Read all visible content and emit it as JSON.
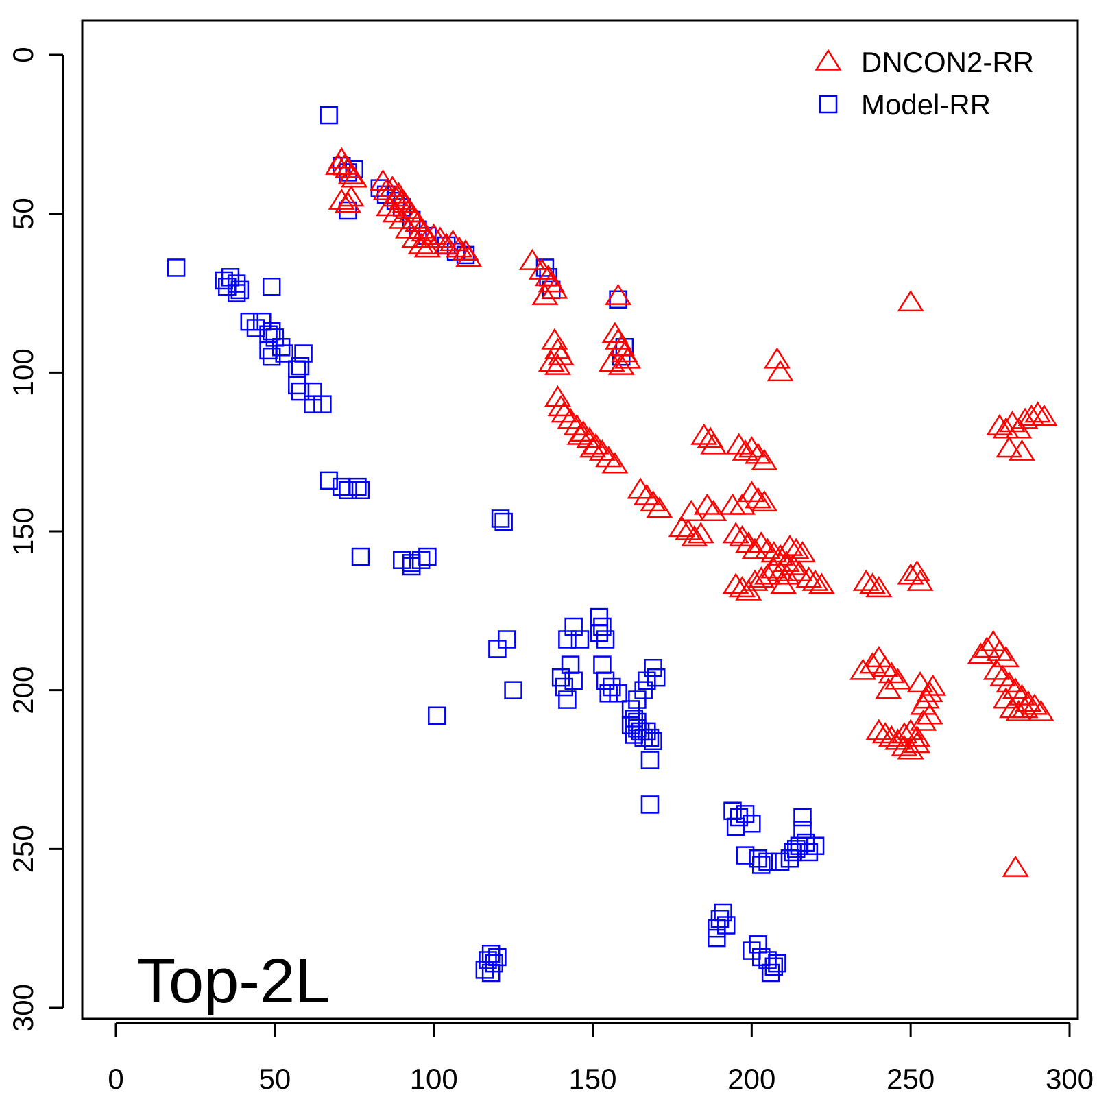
{
  "chart_data": {
    "type": "scatter",
    "title": "",
    "xlabel": "",
    "ylabel": "",
    "xlim": [
      0,
      300
    ],
    "ylim": [
      300,
      0
    ],
    "y_reversed": true,
    "grid": false,
    "legend_position": "top-right",
    "annotation": "Top-2L",
    "x_ticks": [
      0,
      50,
      100,
      150,
      200,
      250,
      300
    ],
    "y_ticks": [
      0,
      50,
      100,
      150,
      200,
      250,
      300
    ],
    "series": [
      {
        "name": "DNCON2-RR",
        "marker": "triangle",
        "color": "#ff0000",
        "points": [
          [
            71,
            33
          ],
          [
            72,
            35
          ],
          [
            73,
            36
          ],
          [
            74,
            38
          ],
          [
            70,
            35
          ],
          [
            75,
            39
          ],
          [
            73,
            47
          ],
          [
            74,
            45
          ],
          [
            71,
            46
          ],
          [
            84,
            40
          ],
          [
            85,
            43
          ],
          [
            87,
            42
          ],
          [
            88,
            45
          ],
          [
            89,
            44
          ],
          [
            90,
            46
          ],
          [
            91,
            47
          ],
          [
            92,
            49
          ],
          [
            93,
            50
          ],
          [
            94,
            52
          ],
          [
            95,
            53
          ],
          [
            96,
            55
          ],
          [
            97,
            56
          ],
          [
            98,
            58
          ],
          [
            100,
            57
          ],
          [
            102,
            58
          ],
          [
            104,
            60
          ],
          [
            106,
            59
          ],
          [
            108,
            61
          ],
          [
            110,
            62
          ],
          [
            111,
            64
          ],
          [
            86,
            48
          ],
          [
            88,
            50
          ],
          [
            90,
            52
          ],
          [
            92,
            55
          ],
          [
            94,
            58
          ],
          [
            96,
            60
          ],
          [
            98,
            61
          ],
          [
            131,
            65
          ],
          [
            134,
            68
          ],
          [
            136,
            70
          ],
          [
            137,
            72
          ],
          [
            138,
            74
          ],
          [
            135,
            76
          ],
          [
            158,
            76
          ],
          [
            138,
            90
          ],
          [
            139,
            93
          ],
          [
            140,
            95
          ],
          [
            137,
            97
          ],
          [
            139,
            98
          ],
          [
            157,
            88
          ],
          [
            158,
            90
          ],
          [
            159,
            92
          ],
          [
            160,
            94
          ],
          [
            161,
            96
          ],
          [
            156,
            97
          ],
          [
            159,
            98
          ],
          [
            208,
            96
          ],
          [
            209,
            100
          ],
          [
            250,
            78
          ],
          [
            139,
            108
          ],
          [
            140,
            111
          ],
          [
            141,
            113
          ],
          [
            143,
            115
          ],
          [
            145,
            117
          ],
          [
            147,
            119
          ],
          [
            149,
            121
          ],
          [
            151,
            123
          ],
          [
            153,
            125
          ],
          [
            155,
            127
          ],
          [
            157,
            129
          ],
          [
            146,
            120
          ],
          [
            150,
            124
          ],
          [
            185,
            120
          ],
          [
            187,
            121
          ],
          [
            188,
            123
          ],
          [
            196,
            123
          ],
          [
            198,
            125
          ],
          [
            200,
            124
          ],
          [
            202,
            126
          ],
          [
            204,
            128
          ],
          [
            278,
            117
          ],
          [
            280,
            118
          ],
          [
            282,
            116
          ],
          [
            284,
            118
          ],
          [
            286,
            115
          ],
          [
            288,
            114
          ],
          [
            290,
            113
          ],
          [
            292,
            114
          ],
          [
            281,
            124
          ],
          [
            285,
            125
          ],
          [
            165,
            137
          ],
          [
            167,
            139
          ],
          [
            169,
            141
          ],
          [
            171,
            143
          ],
          [
            178,
            149
          ],
          [
            180,
            150
          ],
          [
            182,
            152
          ],
          [
            184,
            151
          ],
          [
            186,
            142
          ],
          [
            188,
            144
          ],
          [
            181,
            144
          ],
          [
            194,
            142
          ],
          [
            197,
            142
          ],
          [
            200,
            138
          ],
          [
            202,
            140
          ],
          [
            204,
            141
          ],
          [
            195,
            151
          ],
          [
            197,
            152
          ],
          [
            199,
            154
          ],
          [
            201,
            156
          ],
          [
            203,
            154
          ],
          [
            205,
            156
          ],
          [
            207,
            157
          ],
          [
            209,
            158
          ],
          [
            211,
            160
          ],
          [
            213,
            161
          ],
          [
            215,
            163
          ],
          [
            212,
            155
          ],
          [
            214,
            156
          ],
          [
            216,
            157
          ],
          [
            218,
            165
          ],
          [
            220,
            166
          ],
          [
            222,
            167
          ],
          [
            207,
            162
          ],
          [
            209,
            163
          ],
          [
            211,
            164
          ],
          [
            210,
            167
          ],
          [
            195,
            167
          ],
          [
            197,
            168
          ],
          [
            199,
            169
          ],
          [
            201,
            166
          ],
          [
            203,
            165
          ],
          [
            205,
            164
          ],
          [
            236,
            166
          ],
          [
            238,
            167
          ],
          [
            240,
            168
          ],
          [
            250,
            164
          ],
          [
            252,
            163
          ],
          [
            253,
            166
          ],
          [
            235,
            194
          ],
          [
            238,
            192
          ],
          [
            240,
            190
          ],
          [
            242,
            193
          ],
          [
            244,
            195
          ],
          [
            246,
            197
          ],
          [
            243,
            200
          ],
          [
            240,
            213
          ],
          [
            242,
            214
          ],
          [
            244,
            215
          ],
          [
            246,
            216
          ],
          [
            248,
            214
          ],
          [
            250,
            213
          ],
          [
            252,
            215
          ],
          [
            254,
            210
          ],
          [
            256,
            208
          ],
          [
            254,
            205
          ],
          [
            255,
            203
          ],
          [
            256,
            201
          ],
          [
            253,
            198
          ],
          [
            257,
            199
          ],
          [
            248,
            218
          ],
          [
            250,
            219
          ],
          [
            252,
            217
          ],
          [
            272,
            189
          ],
          [
            274,
            187
          ],
          [
            276,
            185
          ],
          [
            278,
            188
          ],
          [
            280,
            190
          ],
          [
            277,
            194
          ],
          [
            279,
            196
          ],
          [
            281,
            198
          ],
          [
            283,
            200
          ],
          [
            285,
            202
          ],
          [
            287,
            204
          ],
          [
            289,
            205
          ],
          [
            291,
            207
          ],
          [
            280,
            203
          ],
          [
            282,
            206
          ],
          [
            284,
            207
          ],
          [
            286,
            206
          ],
          [
            283,
            256
          ]
        ]
      },
      {
        "name": "Model-RR",
        "marker": "square",
        "color": "#0000ff",
        "points": [
          [
            67,
            19
          ],
          [
            71,
            35
          ],
          [
            73,
            37
          ],
          [
            75,
            36
          ],
          [
            73,
            49
          ],
          [
            83,
            42
          ],
          [
            85,
            44
          ],
          [
            88,
            46
          ],
          [
            90,
            48
          ],
          [
            93,
            52
          ],
          [
            95,
            55
          ],
          [
            98,
            57
          ],
          [
            104,
            60
          ],
          [
            107,
            62
          ],
          [
            110,
            63
          ],
          [
            135,
            67
          ],
          [
            136,
            70
          ],
          [
            137,
            74
          ],
          [
            158,
            77
          ],
          [
            159,
            95
          ],
          [
            160,
            92
          ],
          [
            19,
            67
          ],
          [
            34,
            71
          ],
          [
            35,
            73
          ],
          [
            36,
            70
          ],
          [
            38,
            72
          ],
          [
            39,
            74
          ],
          [
            38,
            75
          ],
          [
            49,
            73
          ],
          [
            42,
            84
          ],
          [
            44,
            86
          ],
          [
            46,
            84
          ],
          [
            48,
            88
          ],
          [
            49,
            87
          ],
          [
            50,
            89
          ],
          [
            52,
            92
          ],
          [
            48,
            93
          ],
          [
            49,
            95
          ],
          [
            53,
            94
          ],
          [
            57,
            99
          ],
          [
            58,
            98
          ],
          [
            59,
            94
          ],
          [
            57,
            104
          ],
          [
            58,
            106
          ],
          [
            62,
            106
          ],
          [
            62,
            110
          ],
          [
            65,
            110
          ],
          [
            67,
            134
          ],
          [
            71,
            136
          ],
          [
            73,
            137
          ],
          [
            76,
            136
          ],
          [
            77,
            137
          ],
          [
            121,
            146
          ],
          [
            122,
            147
          ],
          [
            77,
            158
          ],
          [
            90,
            159
          ],
          [
            93,
            160
          ],
          [
            96,
            159
          ],
          [
            98,
            158
          ],
          [
            93,
            161
          ],
          [
            120,
            187
          ],
          [
            123,
            184
          ],
          [
            101,
            208
          ],
          [
            125,
            200
          ],
          [
            142,
            184
          ],
          [
            144,
            180
          ],
          [
            146,
            184
          ],
          [
            152,
            177
          ],
          [
            153,
            180
          ],
          [
            154,
            184
          ],
          [
            152,
            182
          ],
          [
            140,
            196
          ],
          [
            141,
            199
          ],
          [
            142,
            203
          ],
          [
            143,
            192
          ],
          [
            144,
            197
          ],
          [
            153,
            192
          ],
          [
            154,
            197
          ],
          [
            156,
            199
          ],
          [
            155,
            201
          ],
          [
            158,
            201
          ],
          [
            162,
            206
          ],
          [
            163,
            209
          ],
          [
            164,
            212
          ],
          [
            165,
            213
          ],
          [
            162,
            211
          ],
          [
            163,
            214
          ],
          [
            164,
            210
          ],
          [
            166,
            215
          ],
          [
            167,
            213
          ],
          [
            168,
            215
          ],
          [
            169,
            216
          ],
          [
            164,
            203
          ],
          [
            166,
            200
          ],
          [
            167,
            197
          ],
          [
            169,
            193
          ],
          [
            170,
            196
          ],
          [
            168,
            222
          ],
          [
            168,
            236
          ],
          [
            194,
            238
          ],
          [
            196,
            240
          ],
          [
            198,
            239
          ],
          [
            200,
            242
          ],
          [
            195,
            243
          ],
          [
            198,
            252
          ],
          [
            202,
            253
          ],
          [
            203,
            255
          ],
          [
            205,
            254
          ],
          [
            209,
            254
          ],
          [
            212,
            253
          ],
          [
            213,
            251
          ],
          [
            214,
            250
          ],
          [
            215,
            249
          ],
          [
            216,
            244
          ],
          [
            216,
            240
          ],
          [
            217,
            248
          ],
          [
            218,
            251
          ],
          [
            220,
            249
          ],
          [
            117,
            285
          ],
          [
            118,
            283
          ],
          [
            119,
            286
          ],
          [
            120,
            284
          ],
          [
            116,
            288
          ],
          [
            118,
            289
          ],
          [
            189,
            275
          ],
          [
            190,
            272
          ],
          [
            191,
            270
          ],
          [
            192,
            274
          ],
          [
            189,
            278
          ],
          [
            200,
            282
          ],
          [
            202,
            280
          ],
          [
            203,
            284
          ],
          [
            205,
            285
          ],
          [
            207,
            287
          ],
          [
            208,
            286
          ],
          [
            206,
            289
          ]
        ]
      }
    ]
  }
}
